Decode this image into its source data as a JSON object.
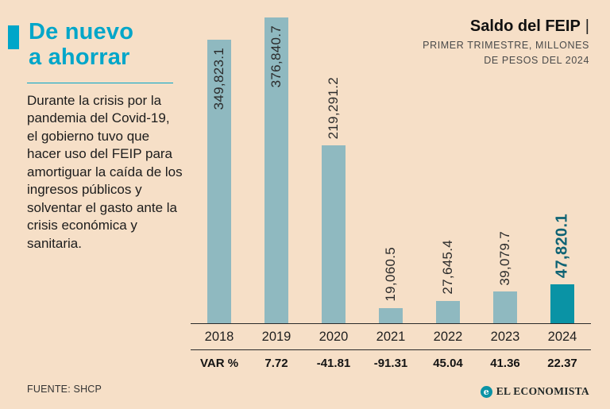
{
  "page": {
    "title_line1": "De nuevo",
    "title_line2": "a ahorrar",
    "paragraph": "Durante la crisis por la pandemia del Covid-19, el gobierno tuvo que hacer uso del FEIP para amortiguar la caída de los ingresos públicos y solventar el gasto ante la crisis económica y sanitaria.",
    "source": "FUENTE: SHCP",
    "brand": "EL ECONOMISTA",
    "brand_icon_letter": "e"
  },
  "header": {
    "title": "Saldo del FEIP",
    "pipe": "|",
    "subtitle_line1": "PRIMER TRIMESTRE, MILLONES",
    "subtitle_line2": "DE PESOS DEL 2024"
  },
  "chart_data": {
    "type": "bar",
    "title": "Saldo del FEIP",
    "subtitle": "Primer trimestre, millones de pesos del 2024",
    "categories": [
      "2018",
      "2019",
      "2020",
      "2021",
      "2022",
      "2023",
      "2024"
    ],
    "values": [
      349823.1,
      376840.7,
      219291.2,
      19060.5,
      27645.4,
      39079.7,
      47820.1
    ],
    "value_labels": [
      "349,823.1",
      "376,840.7",
      "219,291.2",
      "19,060.5",
      "27,645.4",
      "39,079.7",
      "47,820.1"
    ],
    "var_label": "VAR %",
    "var_values": [
      "7.72",
      "-41.81",
      "-91.31",
      "45.04",
      "41.36",
      "22.37"
    ],
    "ylim": [
      0,
      376840.7
    ],
    "highlight_index": 6,
    "bar_color": "#8fb9c0",
    "highlight_color": "#0a93a5",
    "legend": "none",
    "grid": false
  },
  "colors": {
    "accent": "#00a6c9",
    "background": "#f6dfc7",
    "text": "#1c1c1c",
    "highlight_label": "#0e6374"
  }
}
